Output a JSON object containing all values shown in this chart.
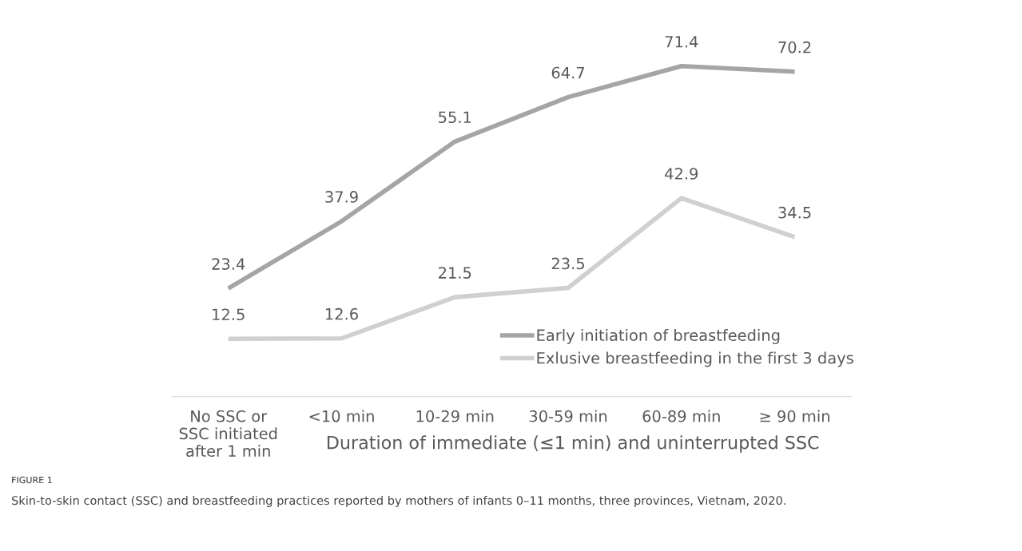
{
  "chart_data": {
    "type": "line",
    "categories": [
      "No SSC or\nSSC initiated\nafter 1 min",
      "<10 min",
      "10-29 min",
      "30-59 min",
      "60-89 min",
      "≥ 90 min"
    ],
    "xlabel": "Duration of immediate (≤1 min) and uninterrupted SSC",
    "series": [
      {
        "name": "Early initiation of breastfeeding",
        "color": "#a5a5a5",
        "values": [
          23.4,
          37.9,
          55.1,
          64.7,
          71.4,
          70.2
        ]
      },
      {
        "name": "Exlusive breastfeeding in the first 3 days",
        "color": "#d0d0d0",
        "values": [
          12.5,
          12.6,
          21.5,
          23.5,
          42.9,
          34.5
        ]
      }
    ],
    "data_labels": true,
    "legend": "bottom right",
    "grid": false,
    "marker": "none",
    "line_style": "solid",
    "annotations": [
      "FIGURE 1",
      "Skin-to-skin contact (SSC) and breastfeeding practices reported by mothers of infants 0–11 months, three provinces, Vietnam, 2020."
    ]
  }
}
